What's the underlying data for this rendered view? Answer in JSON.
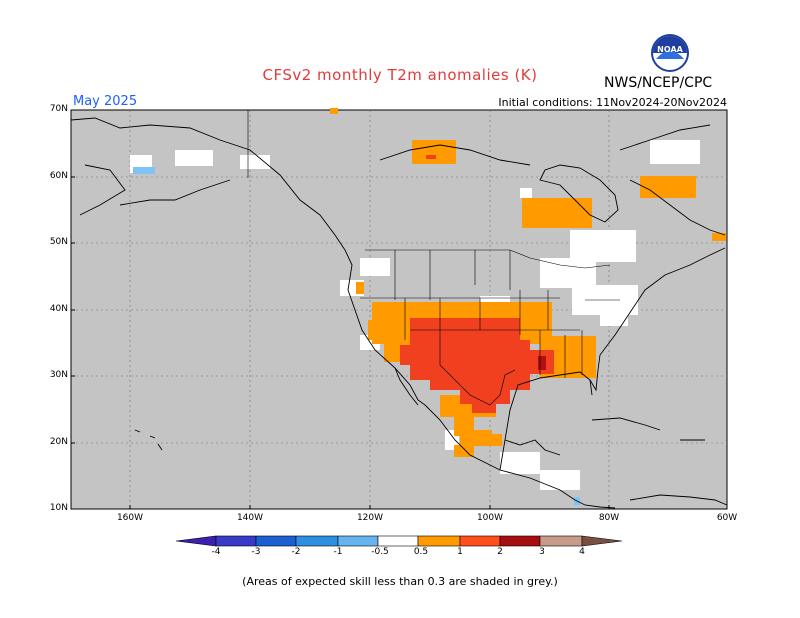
{
  "title": "CFSv2 monthly T2m anomalies (K)",
  "agency": "NWS/NCEP/CPC",
  "month": "May 2025",
  "initial_conditions": "Initial conditions: 11Nov2024-20Nov2024",
  "lat_labels": [
    "70N",
    "60N",
    "50N",
    "40N",
    "30N",
    "20N",
    "10N"
  ],
  "lon_labels": [
    "160W",
    "140W",
    "120W",
    "100W",
    "80W",
    "60W"
  ],
  "colorbar": {
    "labels": [
      "-4",
      "-3",
      "-2",
      "-1",
      "-0.5",
      "0.5",
      "1",
      "2",
      "3",
      "4"
    ],
    "colors": [
      "#3a1fb0",
      "#1c5fd0",
      "#2e8ee0",
      "#66b4ee",
      "#9fd2f8",
      "#ffffff",
      "#ff9b00",
      "#ff4f1a",
      "#e5201a",
      "#a50e0e",
      "#c79a8a",
      "#7a4f42"
    ]
  },
  "footnote": "(Areas of expected skill less than 0.3 are shaded in grey.)",
  "logo_text": "NOAA"
}
